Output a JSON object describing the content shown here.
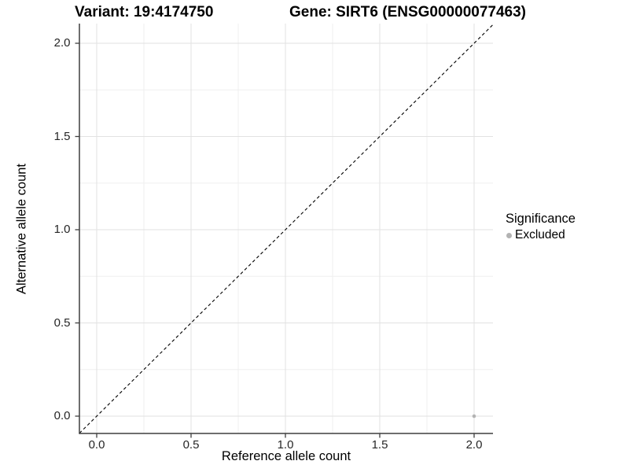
{
  "header": {
    "variant_title": "Variant: 19:4174750",
    "gene_title": "Gene: SIRT6 (ENSG00000077463)"
  },
  "chart_data": {
    "type": "scatter",
    "xlabel": "Reference allele count",
    "ylabel": "Alternative allele count",
    "x_ticks": [
      0.0,
      0.5,
      1.0,
      1.5,
      2.0
    ],
    "y_ticks": [
      0.0,
      0.5,
      1.0,
      1.5,
      2.0
    ],
    "x_minor_ticks": [
      0.25,
      0.75,
      1.25,
      1.75
    ],
    "y_minor_ticks": [
      0.25,
      0.75,
      1.25,
      1.75
    ],
    "xlim": [
      -0.09,
      2.1
    ],
    "ylim": [
      -0.09,
      2.1
    ],
    "grid": true,
    "tick_format_decimals": 1,
    "points": [
      {
        "x": 2.0,
        "y": 0.0,
        "series": "Excluded"
      }
    ],
    "identity_line": {
      "equation": "y = x",
      "style": "dashed"
    },
    "legend": {
      "title": "Significance",
      "position": "right",
      "items": [
        {
          "label": "Excluded",
          "color": "#b3b3b3"
        }
      ]
    }
  },
  "colors": {
    "background": "#ffffff",
    "grid_major": "#e2e2e2",
    "grid_minor": "#efefef",
    "axis_line": "#3f3f3f",
    "tick_label": "#262626",
    "identity_line": "#000000",
    "point_excluded": "#b3b3b3"
  }
}
